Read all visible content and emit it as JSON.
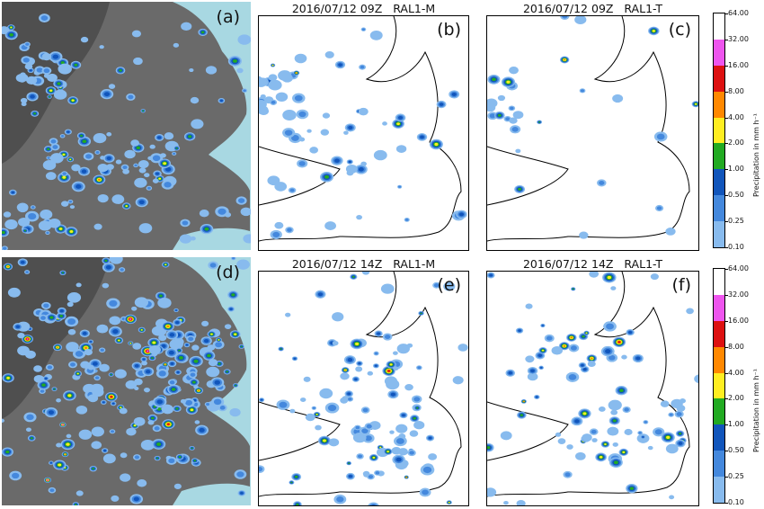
{
  "panels": [
    {
      "id": "a",
      "label": "(a)",
      "title": ""
    },
    {
      "id": "b",
      "label": "(b)",
      "title": "2016/07/12 09Z   RAL1-M"
    },
    {
      "id": "c",
      "label": "(c)",
      "title": "2016/07/12 09Z   RAL1-T"
    },
    {
      "id": "d",
      "label": "(d)",
      "title": ""
    },
    {
      "id": "e",
      "label": "(e)",
      "title": "2016/07/12 14Z   RAL1-M"
    },
    {
      "id": "f",
      "label": "(f)",
      "title": "2016/07/12 14Z   RAL1-T"
    }
  ],
  "colorbar": {
    "label": "Precipitation in mm h⁻¹",
    "ticks": [
      "64.00",
      "32.00",
      "16.00",
      "8.00",
      "4.00",
      "2.00",
      "1.00",
      "0.50",
      "0.25",
      "0.10"
    ],
    "colors": [
      "#ffffff",
      "#ee55ee",
      "#dd1111",
      "#ff8800",
      "#ffee22",
      "#22aa22",
      "#1155bb",
      "#4488dd",
      "#88bbee"
    ]
  },
  "colors": {
    "sea": "#a8d8e2",
    "land": "#707070",
    "coast": "#000000"
  }
}
